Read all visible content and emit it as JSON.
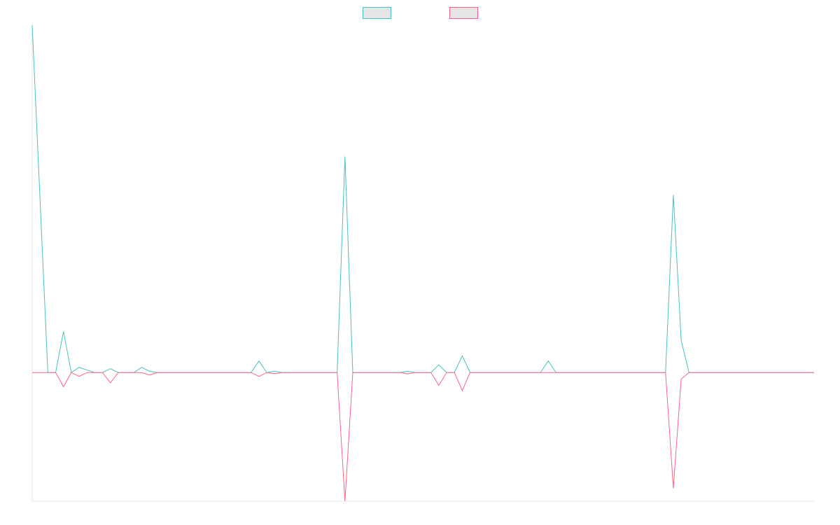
{
  "chart_data": {
    "type": "line",
    "title": "",
    "xlabel": "",
    "ylabel": "",
    "grid": false,
    "legend_placement": "top-center",
    "x": [
      0,
      2,
      3,
      4,
      5,
      6,
      7,
      8,
      9,
      10,
      11,
      12,
      13,
      14,
      15,
      16,
      17,
      18,
      19,
      20,
      21,
      22,
      23,
      24,
      25,
      26,
      27,
      28,
      29,
      30,
      31,
      32,
      33,
      34,
      35,
      36,
      37,
      38,
      39,
      40,
      41,
      42,
      43,
      44,
      45,
      46,
      47,
      48,
      49,
      50,
      51,
      52,
      53,
      54,
      55,
      56,
      57,
      58,
      59,
      60,
      61,
      62,
      63,
      64,
      65,
      66,
      67,
      68,
      69,
      70,
      71,
      72,
      73,
      74,
      75,
      76,
      77,
      78,
      79,
      80,
      81,
      82,
      83,
      84,
      85,
      86,
      87,
      88,
      89,
      90,
      91,
      92,
      93,
      94,
      95,
      96,
      97,
      98,
      99,
      100
    ],
    "ylim": [
      -100,
      270
    ],
    "series": [
      {
        "color": "#4bc0c0",
        "legend_fill": "#e5e5e5",
        "values": [
          270,
          0,
          0,
          32,
          0,
          4,
          2,
          0,
          0,
          3,
          0,
          0,
          0,
          4,
          1,
          0,
          0,
          0,
          0,
          0,
          0,
          0,
          0,
          0,
          0,
          0,
          0,
          0,
          9,
          0,
          1,
          0,
          0,
          0,
          0,
          0,
          0,
          0,
          0,
          168,
          0,
          0,
          0,
          0,
          0,
          0,
          0,
          1,
          0,
          0,
          0,
          6,
          0,
          0,
          13,
          0,
          0,
          0,
          0,
          0,
          0,
          0,
          0,
          0,
          0,
          9,
          0,
          0,
          0,
          0,
          0,
          0,
          0,
          0,
          0,
          0,
          0,
          0,
          0,
          0,
          0,
          138,
          25,
          0,
          0,
          0,
          0,
          0,
          0,
          0,
          0,
          0,
          0,
          0,
          0,
          0,
          0,
          0,
          0,
          0
        ]
      },
      {
        "color": "#ff6384",
        "legend_fill": "#e5e5e5",
        "values": [
          0,
          0,
          0,
          -11,
          0,
          -3,
          0,
          0,
          0,
          -8,
          0,
          0,
          0,
          0,
          -2,
          0,
          0,
          0,
          0,
          0,
          0,
          0,
          0,
          0,
          0,
          0,
          0,
          0,
          -3,
          0,
          -1,
          0,
          0,
          0,
          0,
          0,
          0,
          0,
          0,
          -100,
          0,
          0,
          0,
          0,
          0,
          0,
          0,
          -1,
          0,
          0,
          0,
          -10,
          0,
          0,
          -14,
          0,
          0,
          0,
          0,
          0,
          0,
          0,
          0,
          0,
          0,
          0,
          0,
          0,
          0,
          0,
          0,
          0,
          0,
          0,
          0,
          0,
          0,
          0,
          0,
          0,
          0,
          -90,
          -5,
          0,
          0,
          0,
          0,
          0,
          0,
          0,
          0,
          0,
          0,
          0,
          0,
          0,
          0,
          0,
          0,
          0
        ]
      }
    ]
  }
}
